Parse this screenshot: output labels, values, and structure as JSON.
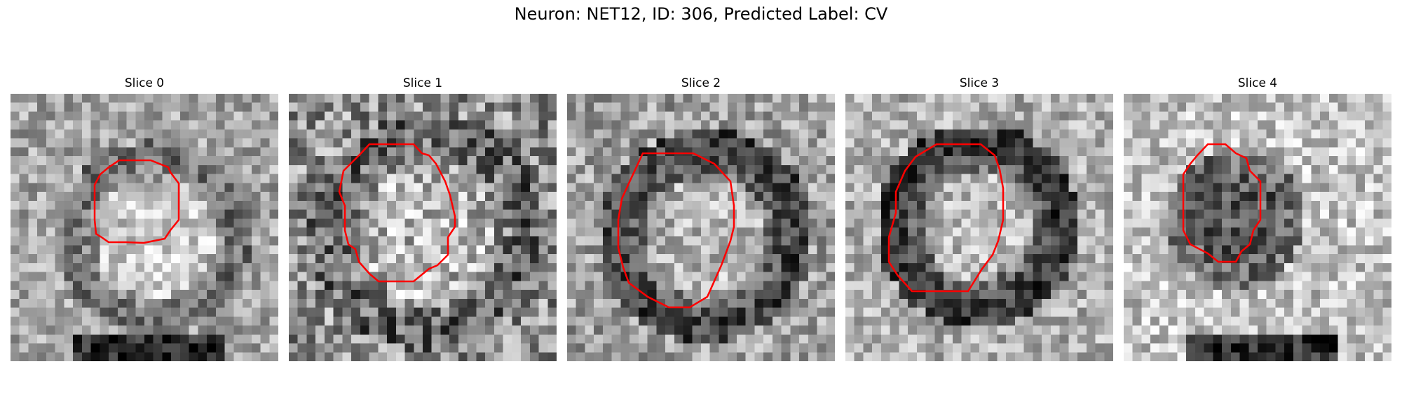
{
  "figure": {
    "title": "Neuron: NET12, ID: 306, Predicted Label: CV"
  },
  "slices": [
    {
      "label": "Slice 0",
      "ring": "bright-center, medium-dark ring",
      "contour_color": "#ff0000"
    },
    {
      "label": "Slice 1",
      "ring": "speckled bright center, dark outer texture",
      "contour_color": "#ff0000"
    },
    {
      "label": "Slice 2",
      "ring": "bright center, dark ring",
      "contour_color": "#ff0000"
    },
    {
      "label": "Slice 3",
      "ring": "bright center, strong dark ring",
      "contour_color": "#ff0000"
    },
    {
      "label": "Slice 4",
      "ring": "dark small blob",
      "contour_color": "#ff0000"
    }
  ]
}
